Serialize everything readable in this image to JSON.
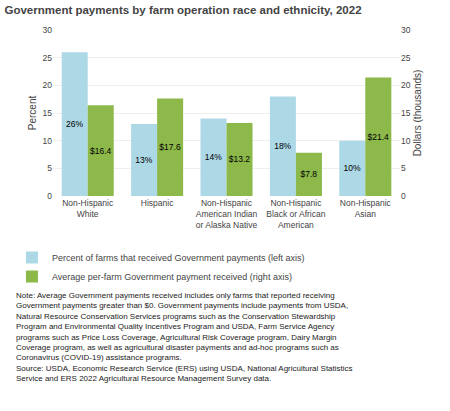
{
  "chart_data": {
    "type": "bar",
    "title": "Government payments by farm operation race and ethnicity, 2022",
    "categories": [
      "Non-Hispanic\nWhite",
      "Hispanic",
      "Non-Hispanic\nAmerican Indian\nor Alaska Native",
      "Non-Hispanic\nBlack or African\nAmerican",
      "Non-Hispanic\nAsian"
    ],
    "series": [
      {
        "name": "Percent of farms that received Government payments (left axis)",
        "color": "#add8e6",
        "values": [
          26,
          13,
          14,
          18,
          10
        ],
        "value_labels": [
          "26%",
          "13%",
          "14%",
          "18%",
          "10%"
        ]
      },
      {
        "name": "Average per-farm Government payment received (right axis)",
        "color": "#8db84a",
        "values": [
          16.4,
          17.6,
          13.2,
          7.8,
          21.4
        ],
        "value_labels": [
          "$16.4",
          "$17.6",
          "$13.2",
          "$7.8",
          "$21.4"
        ],
        "axis": "y2"
      }
    ],
    "ylabel": "Percent",
    "y2label": "Dollars (thousands)",
    "ylim": [
      0,
      30
    ],
    "yticks": [
      0,
      5,
      10,
      15,
      20,
      25,
      30
    ],
    "y2lim": [
      0,
      30
    ],
    "y2ticks": [
      0,
      5,
      10,
      15,
      20,
      25,
      30
    ],
    "grid": true,
    "legend": "bottom",
    "data_labels": true,
    "annotations": [
      "Note: Average Government payments received includes only farms that reported receiving",
      "Government payments greater than $0. Government payments include payments from USDA,",
      "Natural Resource Conservation Services programs such as the Conservation Stewardship",
      "Program and Environmental Quality Incentives Program and USDA, Farm Service Agency",
      "programs such as Price Loss Coverage, Agricultural Risk Coverage program, Dairy Margin",
      "Coverage program, as well as agricultural disaster payments and ad-hoc programs such as",
      "Coronavirus (COVID-19) assistance programs.",
      "Source: USDA, Economic Research Service (ERS) using USDA, National Agricultural Statistics",
      "Service and ERS 2022 Agricultural Resource Management Survey data."
    ]
  }
}
